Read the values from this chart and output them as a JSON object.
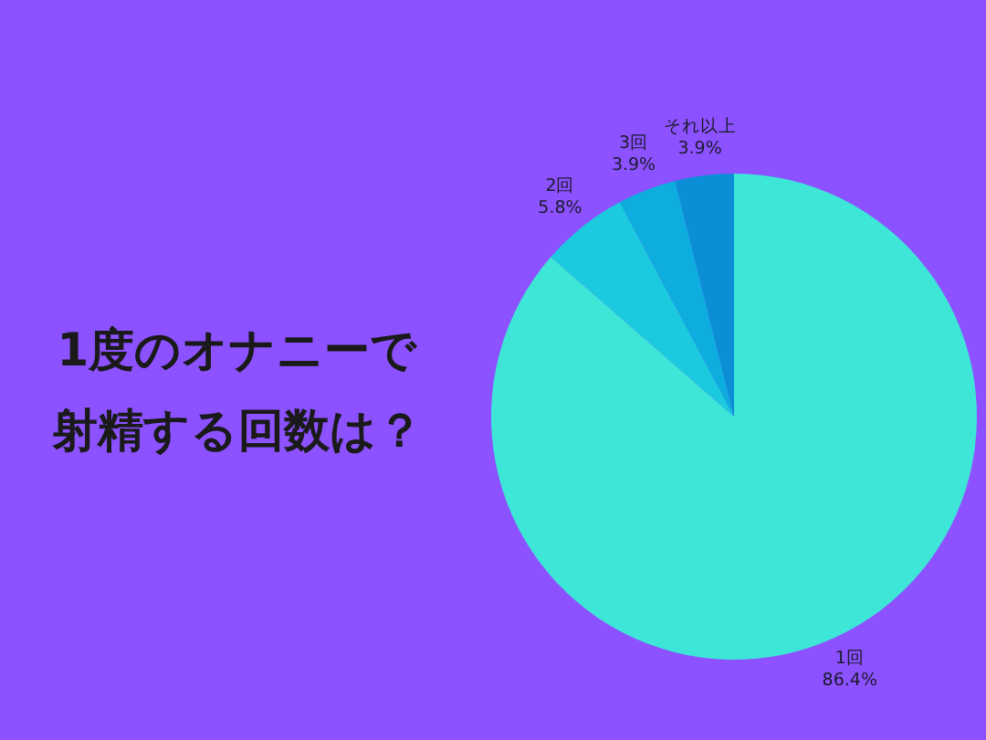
{
  "chart_data": {
    "type": "pie",
    "title": "1度のオナニーで射精する回数は？",
    "categories": [
      "1回",
      "2回",
      "3回",
      "それ以上"
    ],
    "values": [
      86.4,
      5.8,
      3.9,
      3.9
    ],
    "colors": [
      "#3ee6d8",
      "#1ccadf",
      "#0daede",
      "#0a8fd6"
    ],
    "value_labels": [
      "86.4%",
      "5.8%",
      "3.9%",
      "3.9%"
    ]
  }
}
